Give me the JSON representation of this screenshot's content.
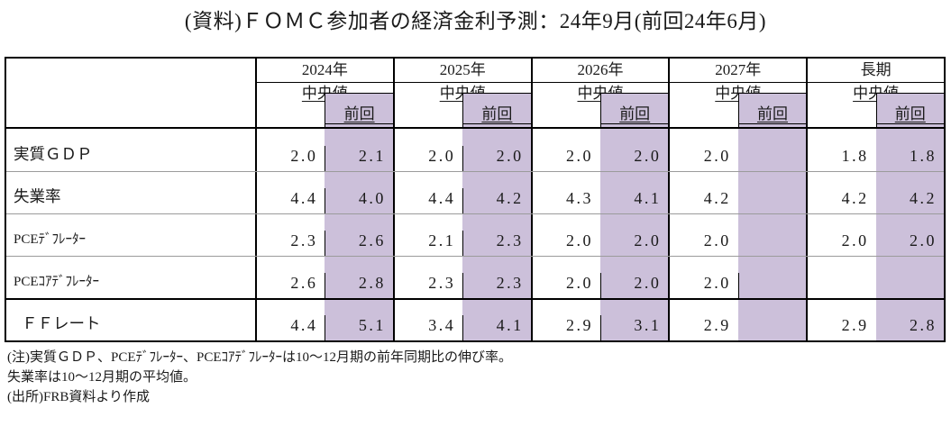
{
  "title": "(資料)ＦＯＭＣ参加者の経済金利予測：24年9月(前回24年6月)",
  "table": {
    "year_headers": [
      "2024年",
      "2025年",
      "2026年",
      "2027年",
      "長期"
    ],
    "median_label": "中央値",
    "previous_label": "前回",
    "highlight_color": "#CCC0DA",
    "rows": [
      {
        "label": "実質ＧＤＰ",
        "values": [
          [
            "2.0",
            "2.1"
          ],
          [
            "2.0",
            "2.0"
          ],
          [
            "2.0",
            "2.0"
          ],
          [
            "2.0",
            ""
          ],
          [
            "1.8",
            "1.8"
          ]
        ]
      },
      {
        "label": "失業率",
        "values": [
          [
            "4.4",
            "4.0"
          ],
          [
            "4.4",
            "4.2"
          ],
          [
            "4.3",
            "4.1"
          ],
          [
            "4.2",
            ""
          ],
          [
            "4.2",
            "4.2"
          ]
        ]
      },
      {
        "label": "PCEﾃﾞﾌﾚｰﾀｰ",
        "values": [
          [
            "2.3",
            "2.6"
          ],
          [
            "2.1",
            "2.3"
          ],
          [
            "2.0",
            "2.0"
          ],
          [
            "2.0",
            ""
          ],
          [
            "2.0",
            "2.0"
          ]
        ]
      },
      {
        "label": "PCEｺｱﾃﾞﾌﾚｰﾀｰ",
        "values": [
          [
            "2.6",
            "2.8"
          ],
          [
            "2.3",
            "2.3"
          ],
          [
            "2.0",
            "2.0"
          ],
          [
            "2.0",
            ""
          ],
          [
            "",
            ""
          ]
        ]
      },
      {
        "label": "ＦＦレート",
        "values": [
          [
            "4.4",
            "5.1"
          ],
          [
            "3.4",
            "4.1"
          ],
          [
            "2.9",
            "3.1"
          ],
          [
            "2.9",
            ""
          ],
          [
            "2.9",
            "2.8"
          ]
        ]
      }
    ]
  },
  "notes": [
    "(注)実質ＧＤＰ、PCEﾃﾞﾌﾚｰﾀｰ、PCEｺｱﾃﾞﾌﾚｰﾀｰは10～12月期の前年同期比の伸び率。",
    "失業率は10～12月期の平均値。",
    "(出所)FRB資料より作成"
  ]
}
